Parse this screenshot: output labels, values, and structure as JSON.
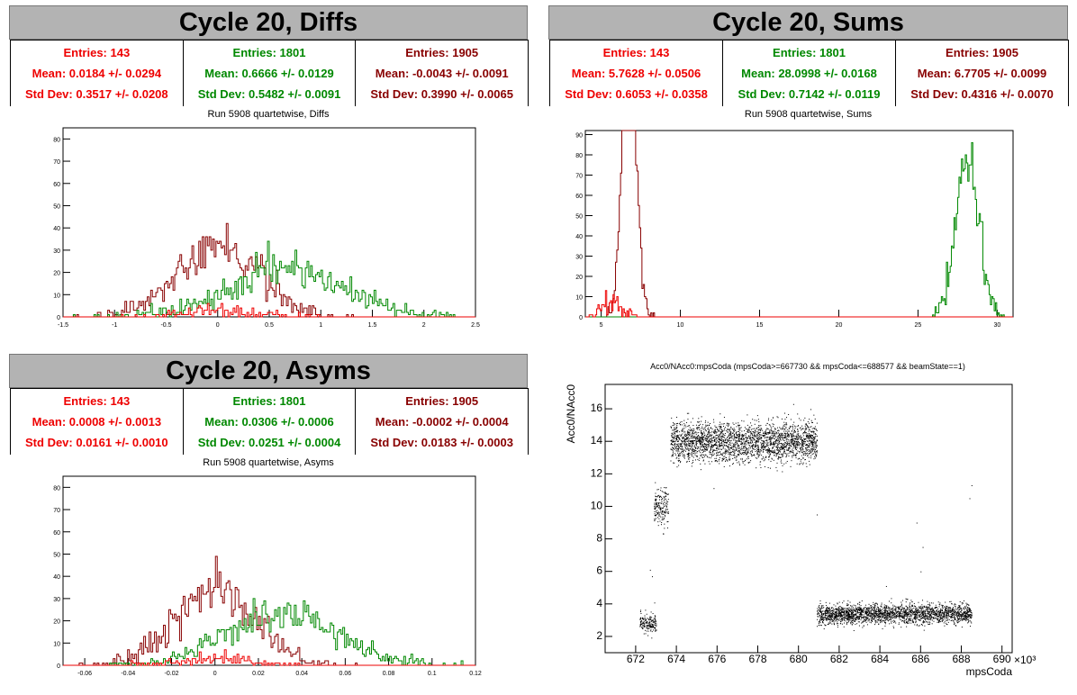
{
  "colors": {
    "series1": "#ee0000",
    "series2": "#008800",
    "series3": "#880000",
    "scatter": "#000000"
  },
  "panels": {
    "diffs": {
      "title": "Cycle 20, Diffs",
      "subtitle": "Run 5908 quartetwise, Diffs",
      "stats": [
        {
          "entries": "Entries: 143",
          "mean": "Mean: 0.0184 +/- 0.0294",
          "std": "Std Dev: 0.3517 +/- 0.0208"
        },
        {
          "entries": "Entries: 1801",
          "mean": "Mean: 0.6666 +/- 0.0129",
          "std": "Std Dev: 0.5482 +/- 0.0091"
        },
        {
          "entries": "Entries: 1905",
          "mean": "Mean: -0.0043 +/- 0.0091",
          "std": "Std Dev: 0.3990 +/- 0.0065"
        }
      ]
    },
    "sums": {
      "title": "Cycle 20, Sums",
      "subtitle": "Run 5908 quartetwise, Sums",
      "stats": [
        {
          "entries": "Entries: 143",
          "mean": "Mean: 5.7628 +/- 0.0506",
          "std": "Std Dev: 0.6053 +/- 0.0358"
        },
        {
          "entries": "Entries: 1801",
          "mean": "Mean: 28.0998 +/- 0.0168",
          "std": "Std Dev: 0.7142 +/- 0.0119"
        },
        {
          "entries": "Entries: 1905",
          "mean": "Mean: 6.7705 +/- 0.0099",
          "std": "Std Dev: 0.4316 +/- 0.0070"
        }
      ]
    },
    "asyms": {
      "title": "Cycle 20, Asyms",
      "subtitle": "Run 5908 quartetwise, Asyms",
      "stats": [
        {
          "entries": "Entries: 143",
          "mean": "Mean: 0.0008 +/- 0.0013",
          "std": "Std Dev: 0.0161 +/- 0.0010"
        },
        {
          "entries": "Entries: 1801",
          "mean": "Mean: 0.0306 +/- 0.0006",
          "std": "Std Dev: 0.0251 +/- 0.0004"
        },
        {
          "entries": "Entries: 1905",
          "mean": "Mean: -0.0002 +/- 0.0004",
          "std": "Std Dev: 0.0183 +/- 0.0003"
        }
      ]
    },
    "scatter": {
      "title": "Acc0/NAcc0:mpsCoda (mpsCoda>=667730 && mpsCoda<=688577 && beamState==1)",
      "xlabel": "mpsCoda",
      "ylabel": "Acc0/NAcc0",
      "xexp": "×10³"
    }
  },
  "chart_data": [
    {
      "type": "bar",
      "title": "Run 5908 quartetwise, Diffs",
      "xlim": [
        -1.5,
        2.5
      ],
      "ylim": [
        0,
        85
      ],
      "xticks": [
        -1.5,
        -1,
        -0.5,
        0,
        0.5,
        1,
        1.5,
        2,
        2.5
      ],
      "yticks": [
        0,
        10,
        20,
        30,
        40,
        50,
        60,
        70,
        80
      ],
      "series": [
        {
          "entries": 143,
          "mean": 0.0184,
          "std": 0.3517,
          "color": "#ee0000"
        },
        {
          "entries": 1801,
          "mean": 0.6666,
          "std": 0.5482,
          "color": "#008800"
        },
        {
          "entries": 1905,
          "mean": -0.0043,
          "std": 0.399,
          "color": "#880000"
        }
      ]
    },
    {
      "type": "bar",
      "title": "Run 5908 quartetwise, Sums",
      "xlim": [
        4,
        31
      ],
      "ylim": [
        0,
        92
      ],
      "xticks": [
        5,
        10,
        15,
        20,
        25,
        30
      ],
      "yticks": [
        0,
        10,
        20,
        30,
        40,
        50,
        60,
        70,
        80,
        90
      ],
      "series": [
        {
          "entries": 143,
          "mean": 5.7628,
          "std": 0.6053,
          "color": "#ee0000"
        },
        {
          "entries": 1801,
          "mean": 28.0998,
          "std": 0.7142,
          "color": "#008800"
        },
        {
          "entries": 1905,
          "mean": 6.7705,
          "std": 0.4316,
          "color": "#880000"
        }
      ]
    },
    {
      "type": "bar",
      "title": "Run 5908 quartetwise, Asyms",
      "xlim": [
        -0.07,
        0.12
      ],
      "ylim": [
        0,
        85
      ],
      "xticks": [
        -0.06,
        -0.04,
        -0.02,
        0,
        0.02,
        0.04,
        0.06,
        0.08,
        0.1,
        0.12
      ],
      "yticks": [
        0,
        10,
        20,
        30,
        40,
        50,
        60,
        70,
        80
      ],
      "series": [
        {
          "entries": 143,
          "mean": 0.0008,
          "std": 0.0161,
          "color": "#ee0000"
        },
        {
          "entries": 1801,
          "mean": 0.0306,
          "std": 0.0251,
          "color": "#008800"
        },
        {
          "entries": 1905,
          "mean": -0.0002,
          "std": 0.0183,
          "color": "#880000"
        }
      ]
    },
    {
      "type": "scatter",
      "title": "Acc0/NAcc0:mpsCoda (mpsCoda>=667730 && mpsCoda<=688577 && beamState==1)",
      "xlabel": "mpsCoda",
      "ylabel": "Acc0/NAcc0",
      "xlim": [
        670.5,
        690.5
      ],
      "ylim": [
        1,
        17.5
      ],
      "xticks": [
        672,
        674,
        676,
        678,
        680,
        682,
        684,
        686,
        688,
        690
      ],
      "yticks": [
        2,
        4,
        6,
        8,
        10,
        12,
        14,
        16
      ],
      "clusters": [
        {
          "x": [
            672.2,
            673.0
          ],
          "y_mean": 2.8,
          "y_std": 0.3
        },
        {
          "x": [
            672.9,
            673.6
          ],
          "y_mean": 10.0,
          "y_std": 0.6
        },
        {
          "x": [
            673.7,
            680.9
          ],
          "y_mean": 14.0,
          "y_std": 0.6
        },
        {
          "x": [
            680.9,
            688.5
          ],
          "y_mean": 3.4,
          "y_std": 0.3
        }
      ]
    }
  ]
}
